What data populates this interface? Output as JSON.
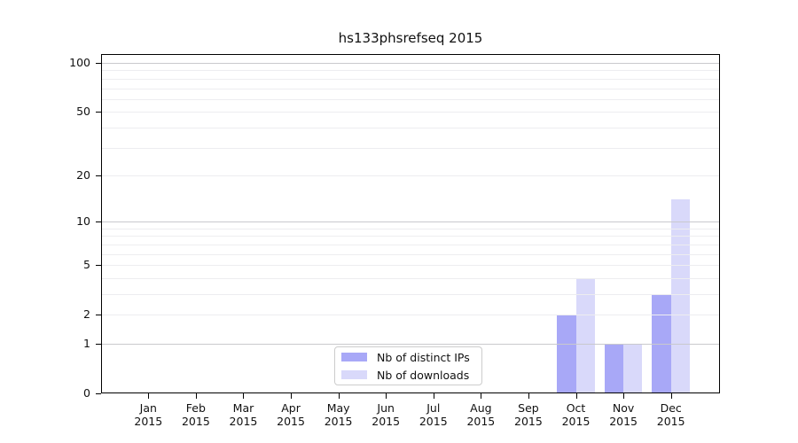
{
  "title": "hs133phsrefseq 2015",
  "chart_data": {
    "type": "bar",
    "title": "hs133phsrefseq 2015",
    "categories": [
      "Jan 2015",
      "Feb 2015",
      "Mar 2015",
      "Apr 2015",
      "May 2015",
      "Jun 2015",
      "Jul 2015",
      "Aug 2015",
      "Sep 2015",
      "Oct 2015",
      "Nov 2015",
      "Dec 2015"
    ],
    "category_month_labels": [
      "Jan",
      "Feb",
      "Mar",
      "Apr",
      "May",
      "Jun",
      "Jul",
      "Aug",
      "Sep",
      "Oct",
      "Nov",
      "Dec"
    ],
    "category_year_label": "2015",
    "series": [
      {
        "name": "Nb of distinct IPs",
        "color": "#a8a8f7",
        "values": [
          0,
          0,
          0,
          0,
          0,
          0,
          0,
          0,
          0,
          2,
          1,
          3
        ]
      },
      {
        "name": "Nb of downloads",
        "color": "#d9d9fa",
        "values": [
          0,
          0,
          0,
          0,
          0,
          0,
          0,
          0,
          0,
          4,
          1,
          14
        ]
      }
    ],
    "xlabel": "",
    "ylabel": "",
    "yscale": "log1p",
    "ylim": [
      0,
      114
    ],
    "ytick_values": [
      0,
      1,
      2,
      5,
      10,
      20,
      50,
      100
    ],
    "ytick_labels": [
      "0",
      "1",
      "2",
      "5",
      "10",
      "20",
      "50",
      "100"
    ],
    "major_gridline_values": [
      1,
      10,
      100
    ],
    "minor_gridline_values": [
      2,
      3,
      4,
      5,
      6,
      7,
      8,
      9,
      20,
      30,
      40,
      50,
      60,
      70,
      80,
      90
    ],
    "grid": true,
    "legend_position": "lower center",
    "colors": {
      "major_grid": "#c9c9cd",
      "minor_grid": "#ededf0",
      "spine": "#000000",
      "text": "#111111",
      "background": "#ffffff"
    }
  }
}
